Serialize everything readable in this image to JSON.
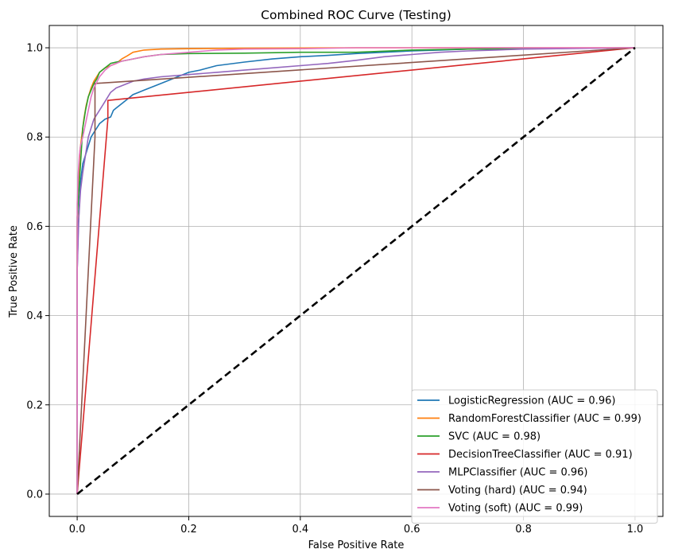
{
  "chart_data": {
    "type": "line",
    "title": "Combined ROC Curve (Testing)",
    "xlabel": "False Positive Rate",
    "ylabel": "True Positive Rate",
    "xlim": [
      -0.05,
      1.05
    ],
    "ylim": [
      -0.05,
      1.05
    ],
    "xticks": [
      0.0,
      0.2,
      0.4,
      0.6,
      0.8,
      1.0
    ],
    "yticks": [
      0.0,
      0.2,
      0.4,
      0.6,
      0.8,
      1.0
    ],
    "xtick_labels": [
      "0.0",
      "0.2",
      "0.4",
      "0.6",
      "0.8",
      "1.0"
    ],
    "ytick_labels": [
      "0.0",
      "0.2",
      "0.4",
      "0.6",
      "0.8",
      "1.0"
    ],
    "grid": true,
    "legend_position": "bottom-right",
    "series": [
      {
        "name": "LogisticRegression (AUC = 0.96)",
        "color": "#1f77b4",
        "x": [
          0,
          0,
          0.002,
          0.004,
          0.006,
          0.008,
          0.01,
          0.015,
          0.02,
          0.025,
          0.03,
          0.035,
          0.04,
          0.05,
          0.06,
          0.065,
          0.07,
          0.075,
          0.08,
          0.09,
          0.1,
          0.11,
          0.12,
          0.14,
          0.16,
          0.18,
          0.2,
          0.22,
          0.25,
          0.3,
          0.35,
          0.4,
          0.45,
          0.5,
          0.55,
          0.6,
          0.65,
          0.7,
          0.8,
          0.9,
          1.0
        ],
        "y": [
          0,
          0.5,
          0.6,
          0.65,
          0.7,
          0.72,
          0.74,
          0.76,
          0.78,
          0.8,
          0.81,
          0.82,
          0.83,
          0.84,
          0.845,
          0.86,
          0.865,
          0.87,
          0.875,
          0.885,
          0.895,
          0.9,
          0.905,
          0.915,
          0.925,
          0.935,
          0.945,
          0.95,
          0.96,
          0.968,
          0.975,
          0.98,
          0.983,
          0.987,
          0.99,
          0.993,
          0.995,
          0.997,
          0.998,
          0.999,
          1.0
        ]
      },
      {
        "name": "RandomForestClassifier (AUC = 0.99)",
        "color": "#ff7f0e",
        "x": [
          0,
          0,
          0.003,
          0.005,
          0.008,
          0.012,
          0.016,
          0.02,
          0.025,
          0.03,
          0.04,
          0.05,
          0.06,
          0.07,
          0.08,
          0.09,
          0.1,
          0.12,
          0.15,
          0.2,
          0.3,
          0.5,
          0.7,
          1.0
        ],
        "y": [
          0,
          0.6,
          0.72,
          0.77,
          0.8,
          0.84,
          0.87,
          0.89,
          0.91,
          0.925,
          0.945,
          0.955,
          0.96,
          0.965,
          0.975,
          0.982,
          0.99,
          0.995,
          0.997,
          0.998,
          0.999,
          1.0,
          1.0,
          1.0
        ]
      },
      {
        "name": "SVC (AUC = 0.98)",
        "color": "#2ca02c",
        "x": [
          0,
          0,
          0.003,
          0.005,
          0.008,
          0.01,
          0.015,
          0.02,
          0.025,
          0.03,
          0.035,
          0.04,
          0.05,
          0.06,
          0.07,
          0.08,
          0.1,
          0.12,
          0.15,
          0.2,
          0.3,
          0.4,
          0.5,
          0.6,
          0.7,
          0.8,
          1.0
        ],
        "y": [
          0,
          0.62,
          0.68,
          0.72,
          0.78,
          0.82,
          0.86,
          0.89,
          0.905,
          0.92,
          0.93,
          0.945,
          0.955,
          0.965,
          0.968,
          0.97,
          0.975,
          0.98,
          0.985,
          0.987,
          0.988,
          0.99,
          0.99,
          0.995,
          0.997,
          0.998,
          1.0
        ]
      },
      {
        "name": "DecisionTreeClassifier (AUC = 0.91)",
        "color": "#d62728",
        "x": [
          0,
          0.055,
          0.055,
          1.0
        ],
        "y": [
          0,
          0.84,
          0.882,
          1.0
        ]
      },
      {
        "name": "MLPClassifier (AUC = 0.96)",
        "color": "#9467bd",
        "x": [
          0,
          0,
          0.003,
          0.006,
          0.01,
          0.015,
          0.02,
          0.025,
          0.03,
          0.04,
          0.05,
          0.06,
          0.07,
          0.08,
          0.1,
          0.12,
          0.15,
          0.2,
          0.25,
          0.3,
          0.35,
          0.4,
          0.45,
          0.5,
          0.55,
          0.6,
          0.65,
          0.7,
          0.75,
          0.8,
          1.0
        ],
        "y": [
          0,
          0.5,
          0.62,
          0.68,
          0.72,
          0.76,
          0.8,
          0.82,
          0.84,
          0.86,
          0.88,
          0.9,
          0.91,
          0.915,
          0.925,
          0.93,
          0.935,
          0.94,
          0.945,
          0.95,
          0.955,
          0.96,
          0.965,
          0.972,
          0.98,
          0.985,
          0.99,
          0.993,
          0.995,
          0.997,
          1.0
        ]
      },
      {
        "name": "Voting (hard) (AUC = 0.94)",
        "color": "#8c564b",
        "x": [
          0,
          0.032,
          0.032,
          1.0
        ],
        "y": [
          0,
          0.8,
          0.92,
          1.0
        ]
      },
      {
        "name": "Voting (soft) (AUC = 0.99)",
        "color": "#e377c2",
        "x": [
          0,
          0,
          0.002,
          0.004,
          0.006,
          0.01,
          0.015,
          0.02,
          0.025,
          0.03,
          0.04,
          0.05,
          0.06,
          0.08,
          0.1,
          0.12,
          0.15,
          0.2,
          0.25,
          0.3,
          0.4,
          0.5,
          0.7,
          1.0
        ],
        "y": [
          0,
          0.65,
          0.72,
          0.76,
          0.78,
          0.8,
          0.83,
          0.86,
          0.89,
          0.91,
          0.935,
          0.95,
          0.96,
          0.97,
          0.975,
          0.98,
          0.985,
          0.99,
          0.995,
          0.997,
          0.998,
          1.0,
          1.0,
          1.0
        ]
      }
    ],
    "reference_line": {
      "x": [
        0,
        1
      ],
      "y": [
        0,
        1
      ],
      "color": "#000000",
      "style": "dashed"
    }
  }
}
